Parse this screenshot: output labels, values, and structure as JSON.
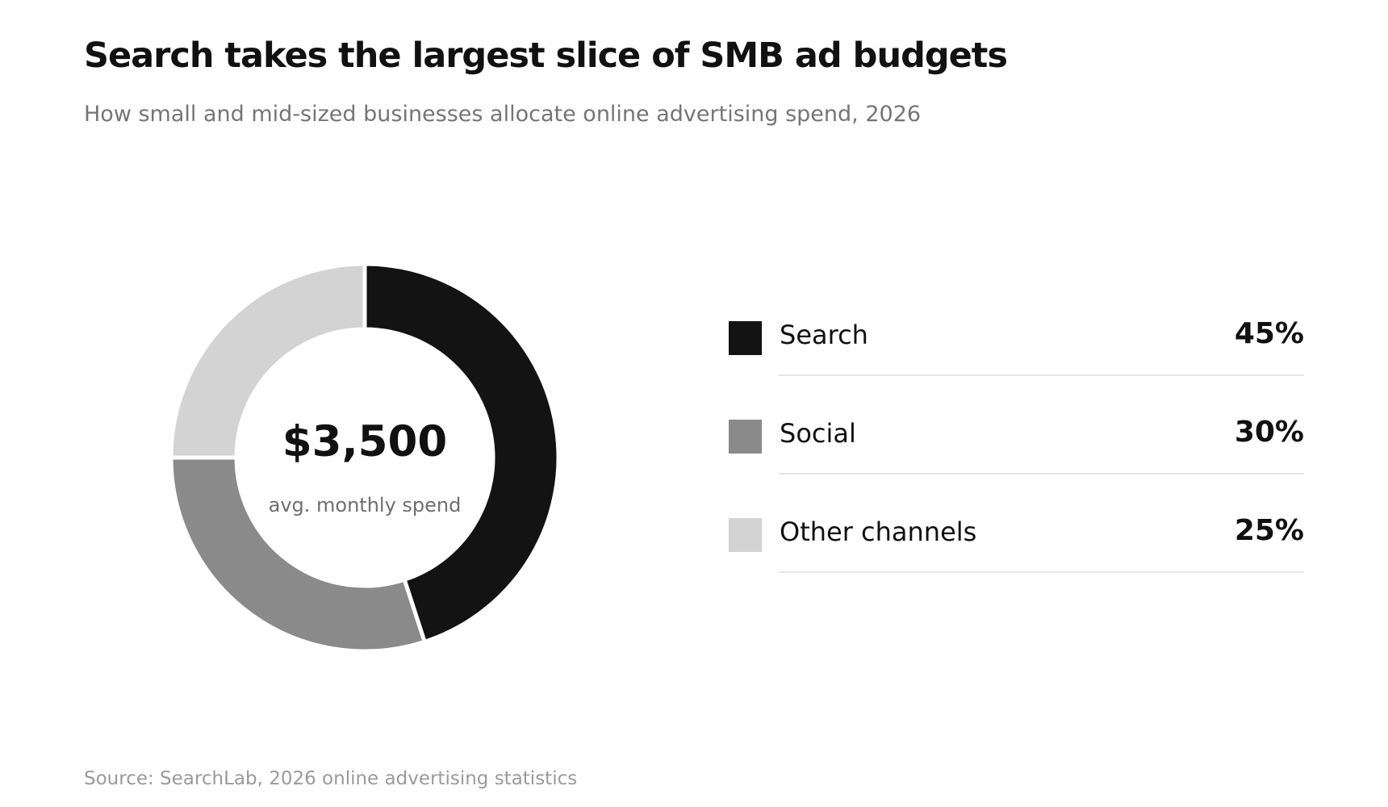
{
  "chart_data": {
    "type": "pie",
    "title": "Search takes the largest slice of SMB ad budgets",
    "subtitle": "How small and mid-sized businesses allocate online advertising spend, 2026",
    "center_value": "$3,500",
    "center_label": "avg. monthly spend",
    "legend_position": "right",
    "slices": [
      {
        "label": "Search",
        "value": 45,
        "display": "45%",
        "color": "#131313"
      },
      {
        "label": "Social",
        "value": 30,
        "display": "30%",
        "color": "#8a8a8a"
      },
      {
        "label": "Other channels",
        "value": 25,
        "display": "25%",
        "color": "#d3d3d3"
      }
    ],
    "source": "Source: SearchLab, 2026 online advertising statistics"
  }
}
